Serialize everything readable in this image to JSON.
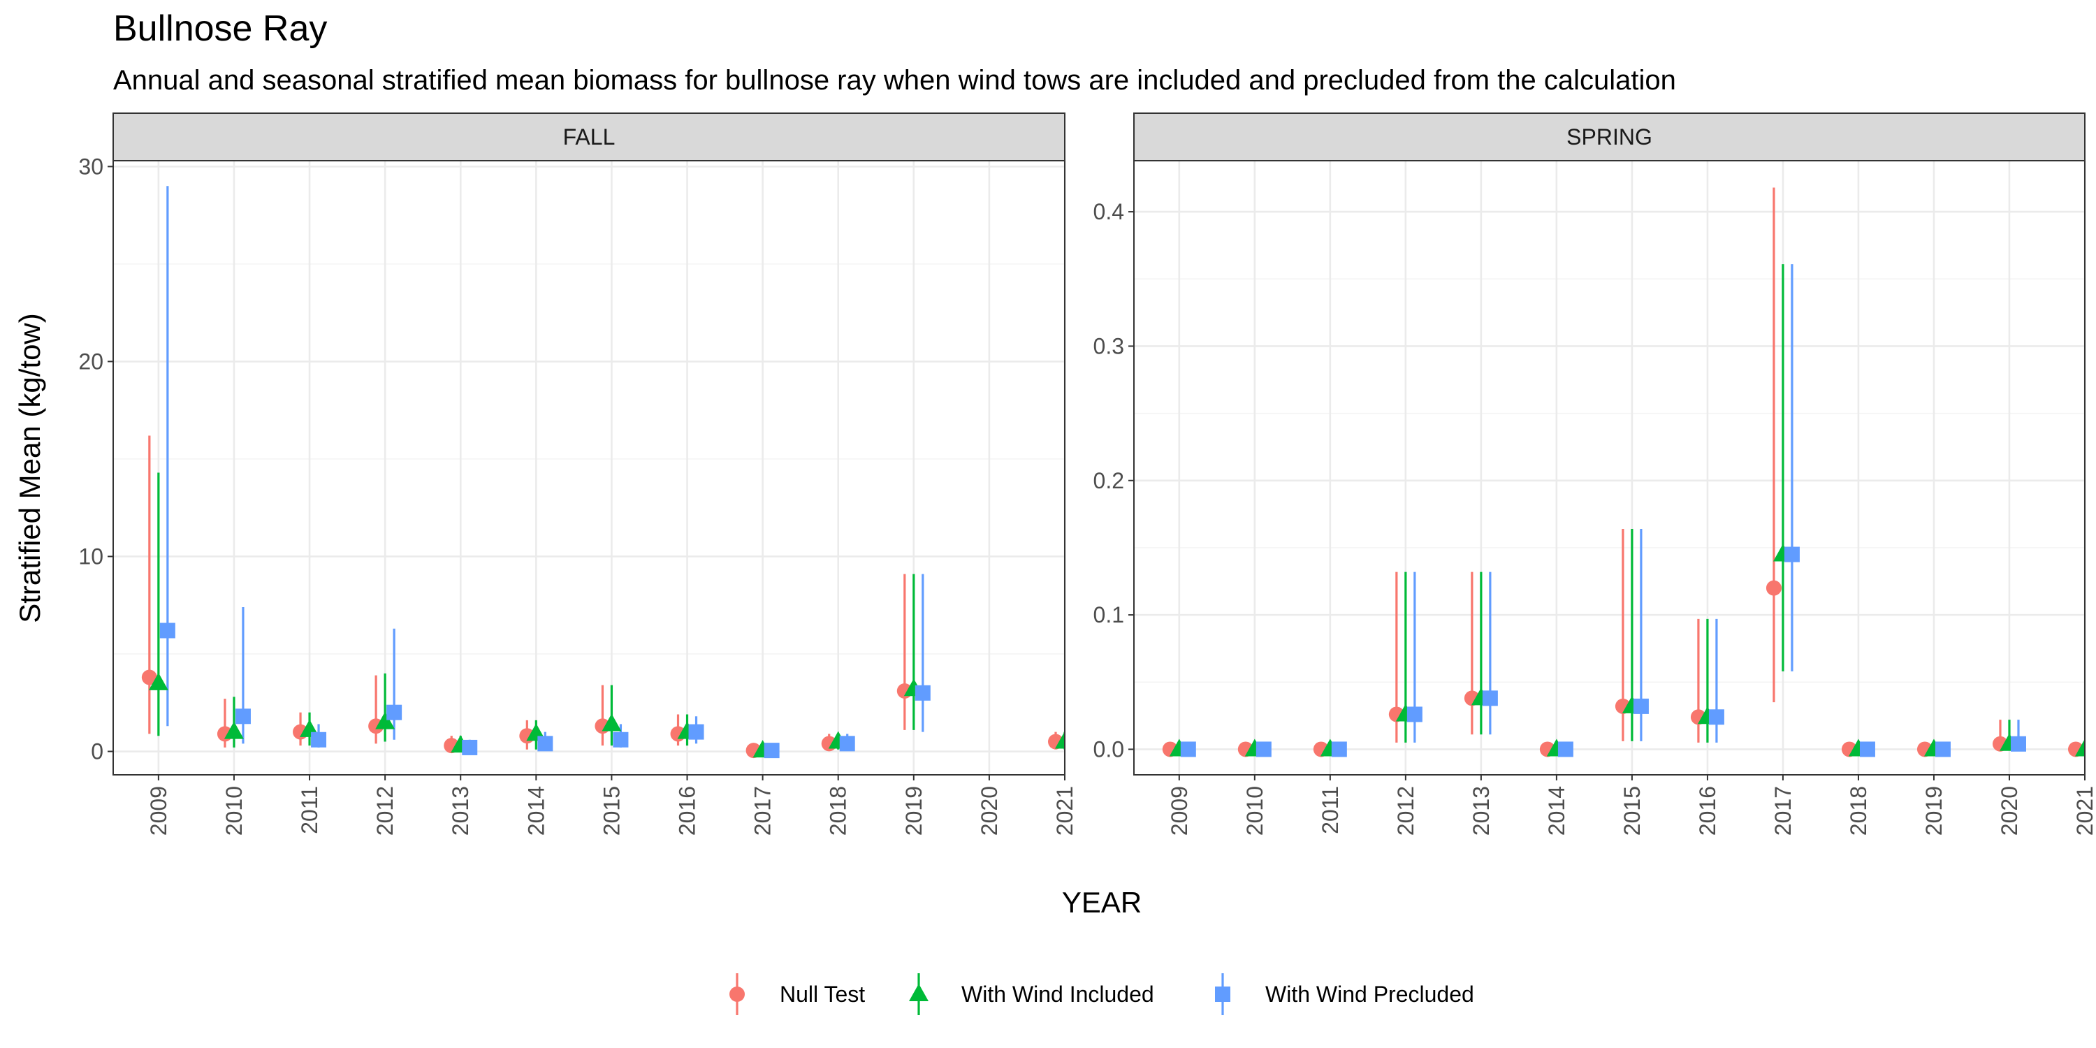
{
  "title": "Bullnose Ray",
  "subtitle": "Annual and seasonal stratified mean biomass for bullnose ray when wind tows are included and precluded from the calculation",
  "xlabel": "YEAR",
  "ylabel": "Stratified Mean (kg/tow)",
  "colors": {
    "Null Test": "#F8766D",
    "With Wind Included": "#00BA38",
    "With Wind Precluded": "#619CFF"
  },
  "chart_data": [
    {
      "type": "scatter",
      "panel": "FALL",
      "categories": [
        "2009",
        "2010",
        "2011",
        "2012",
        "2013",
        "2014",
        "2015",
        "2016",
        "2017",
        "2018",
        "2019",
        "2020",
        "2021"
      ],
      "ylim": [
        -1.2,
        30.3
      ],
      "yticks": [
        0,
        10,
        20,
        30
      ],
      "series": [
        {
          "name": "Null Test",
          "marker": "circle",
          "values": [
            3.8,
            0.9,
            1.0,
            1.3,
            0.3,
            0.8,
            1.3,
            0.9,
            0.05,
            0.4,
            3.1,
            null,
            0.5
          ],
          "lower": [
            0.9,
            0.2,
            0.3,
            0.4,
            0.0,
            0.1,
            0.3,
            0.3,
            0.0,
            0.1,
            1.1,
            null,
            0.1
          ],
          "upper": [
            16.2,
            2.7,
            2.0,
            3.9,
            0.8,
            1.6,
            3.4,
            1.9,
            0.2,
            0.9,
            9.1,
            null,
            1.0
          ]
        },
        {
          "name": "With Wind Included",
          "marker": "triangle",
          "values": [
            3.5,
            1.0,
            1.1,
            1.5,
            0.3,
            0.9,
            1.4,
            1.0,
            0.05,
            0.5,
            3.2,
            null,
            0.5
          ],
          "lower": [
            0.8,
            0.2,
            0.3,
            0.5,
            0.0,
            0.1,
            0.3,
            0.3,
            0.0,
            0.1,
            1.1,
            null,
            0.1
          ],
          "upper": [
            14.3,
            2.8,
            2.0,
            4.0,
            0.8,
            1.6,
            3.4,
            1.9,
            0.2,
            0.9,
            9.1,
            null,
            1.0
          ]
        },
        {
          "name": "With Wind Precluded",
          "marker": "square",
          "values": [
            6.2,
            1.8,
            0.6,
            2.0,
            0.2,
            0.4,
            0.6,
            1.0,
            0.05,
            0.4,
            3.0,
            null,
            0.4
          ],
          "lower": [
            1.3,
            0.4,
            0.2,
            0.6,
            0.0,
            0.1,
            0.2,
            0.4,
            0.0,
            0.1,
            1.0,
            null,
            0.1
          ],
          "upper": [
            29.0,
            7.4,
            1.4,
            6.3,
            0.6,
            1.0,
            1.4,
            1.8,
            0.2,
            0.9,
            9.1,
            null,
            0.9
          ]
        }
      ]
    },
    {
      "type": "scatter",
      "panel": "SPRING",
      "categories": [
        "2009",
        "2010",
        "2011",
        "2012",
        "2013",
        "2014",
        "2015",
        "2016",
        "2017",
        "2018",
        "2019",
        "2020",
        "2021"
      ],
      "ylim": [
        -0.019,
        0.438
      ],
      "yticks": [
        0.0,
        0.1,
        0.2,
        0.3,
        0.4
      ],
      "series": [
        {
          "name": "Null Test",
          "marker": "circle",
          "values": [
            0.0,
            0.0,
            0.0,
            0.026,
            0.038,
            0.0,
            0.032,
            0.024,
            0.12,
            0.0,
            0.0,
            0.004,
            0.0
          ],
          "lower": [
            0.0,
            0.0,
            0.0,
            0.005,
            0.011,
            0.0,
            0.006,
            0.005,
            0.035,
            0.0,
            0.0,
            0.0,
            0.0
          ],
          "upper": [
            0.0,
            0.0,
            0.0,
            0.132,
            0.132,
            0.0,
            0.164,
            0.097,
            0.418,
            0.0,
            0.0,
            0.022,
            0.0
          ]
        },
        {
          "name": "With Wind Included",
          "marker": "triangle",
          "values": [
            0.0,
            0.0,
            0.0,
            0.026,
            0.038,
            0.0,
            0.032,
            0.024,
            0.145,
            0.0,
            0.0,
            0.004,
            0.0
          ],
          "lower": [
            0.0,
            0.0,
            0.0,
            0.005,
            0.011,
            0.0,
            0.006,
            0.005,
            0.058,
            0.0,
            0.0,
            0.0,
            0.0
          ],
          "upper": [
            0.0,
            0.0,
            0.0,
            0.132,
            0.132,
            0.0,
            0.164,
            0.097,
            0.361,
            0.0,
            0.0,
            0.022,
            0.0
          ]
        },
        {
          "name": "With Wind Precluded",
          "marker": "square",
          "values": [
            0.0,
            0.0,
            0.0,
            0.026,
            0.038,
            0.0,
            0.032,
            0.024,
            0.145,
            0.0,
            0.0,
            0.004,
            0.0
          ],
          "lower": [
            0.0,
            0.0,
            0.0,
            0.005,
            0.011,
            0.0,
            0.006,
            0.005,
            0.058,
            0.0,
            0.0,
            0.0,
            0.0
          ],
          "upper": [
            0.0,
            0.0,
            0.0,
            0.132,
            0.132,
            0.0,
            0.164,
            0.097,
            0.361,
            0.0,
            0.0,
            0.022,
            0.0
          ]
        }
      ]
    }
  ],
  "legend": {
    "placement": "bottom",
    "items": [
      "Null Test",
      "With Wind Included",
      "With Wind Precluded"
    ]
  }
}
